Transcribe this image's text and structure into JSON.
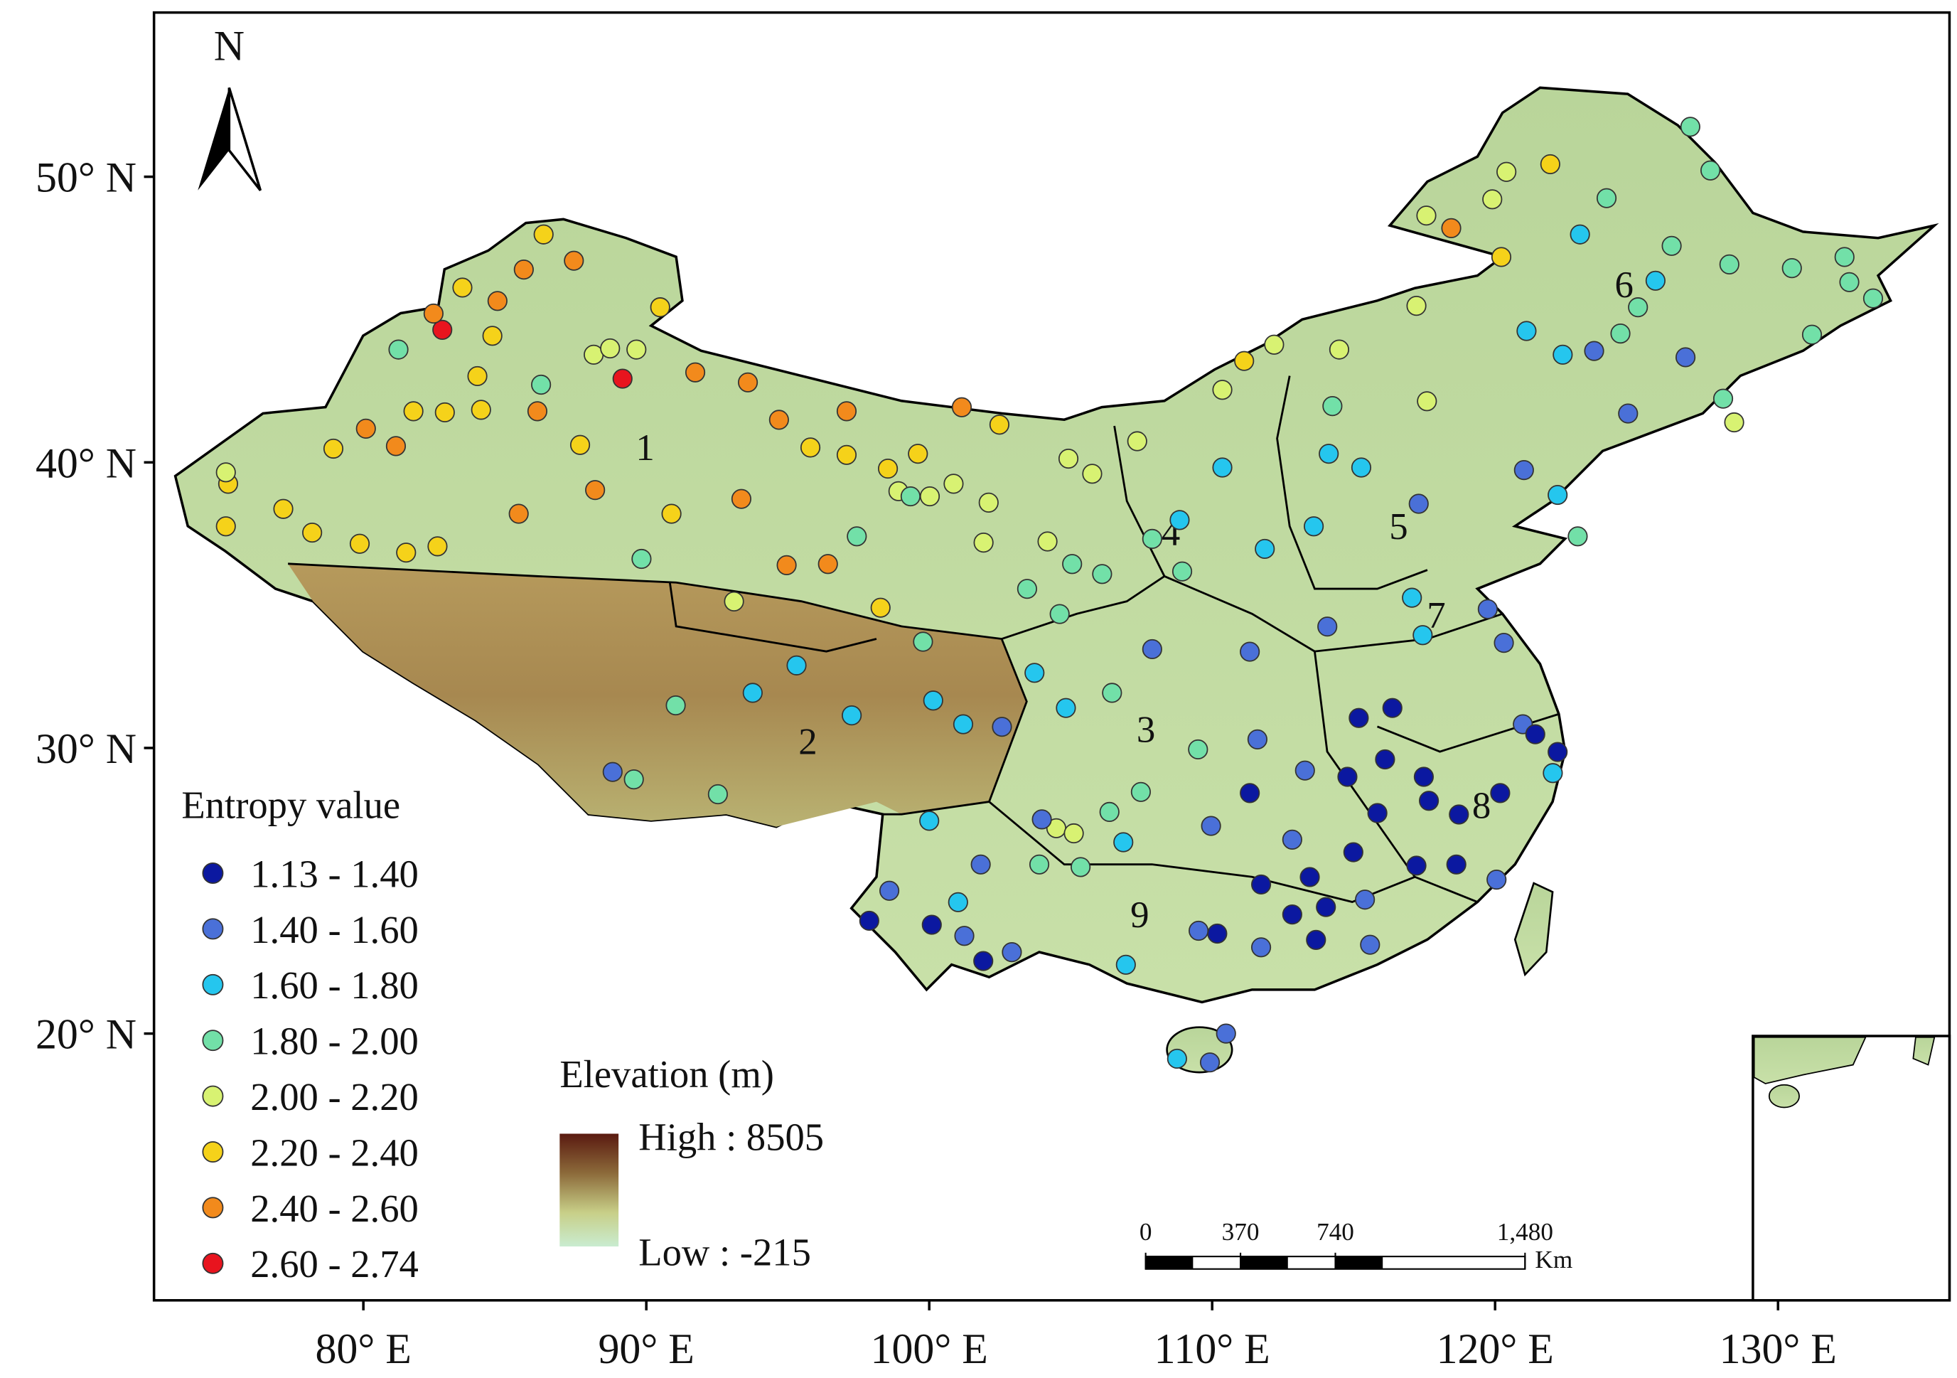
{
  "map": {
    "north_label": "N",
    "xlim": [
      72.6,
      136.06
    ],
    "ylim": [
      10.66,
      55.75
    ],
    "xticks": [
      {
        "value": 80,
        "label": "80° E"
      },
      {
        "value": 90,
        "label": "90° E"
      },
      {
        "value": 100,
        "label": "100° E"
      },
      {
        "value": 110,
        "label": "110° E"
      },
      {
        "value": 120,
        "label": "120° E"
      },
      {
        "value": 130,
        "label": "130° E"
      }
    ],
    "yticks": [
      {
        "value": 20,
        "label": "20° N"
      },
      {
        "value": 30,
        "label": "30° N"
      },
      {
        "value": 40,
        "label": "40° N"
      },
      {
        "value": 50,
        "label": "50° N"
      }
    ],
    "legend": {
      "title": "Entropy value",
      "classes": [
        {
          "label": "1.13 - 1.40",
          "color": "#0b18a0"
        },
        {
          "label": "1.40 - 1.60",
          "color": "#4a70d8"
        },
        {
          "label": "1.60 - 1.80",
          "color": "#25c6ee"
        },
        {
          "label": "1.80 - 2.00",
          "color": "#72e0a8"
        },
        {
          "label": "2.00 - 2.20",
          "color": "#d8f272"
        },
        {
          "label": "2.20 - 2.40",
          "color": "#f5d21a"
        },
        {
          "label": "2.40 - 2.60",
          "color": "#f28a1c"
        },
        {
          "label": "2.60 - 2.74",
          "color": "#e8141e"
        }
      ]
    },
    "elevation": {
      "title": "Elevation (m)",
      "high": "High : 8505",
      "low": "Low : -215"
    },
    "scale_bar": {
      "unit": "Km",
      "ticks": [
        0,
        370,
        740,
        {
          "value": 1480,
          "label": "1,480"
        }
      ]
    },
    "regions": [
      {
        "label": "1",
        "lon": 89.96,
        "lat": 40.52
      },
      {
        "label": "2",
        "lon": 95.71,
        "lat": 30.22
      },
      {
        "label": "3",
        "lon": 107.66,
        "lat": 30.65
      },
      {
        "label": "4",
        "lon": 108.54,
        "lat": 37.54
      },
      {
        "label": "5",
        "lon": 116.59,
        "lat": 37.76
      },
      {
        "label": "6",
        "lon": 124.56,
        "lat": 46.22
      },
      {
        "label": "7",
        "lon": 117.92,
        "lat": 34.64
      },
      {
        "label": "8",
        "lon": 119.52,
        "lat": 27.98
      },
      {
        "label": "9",
        "lon": 107.44,
        "lat": 24.16
      }
    ],
    "stations": [
      [
        82.79,
        44.64,
        7
      ],
      [
        89.16,
        42.93,
        7
      ],
      [
        85.67,
        46.75,
        6
      ],
      [
        87.44,
        47.06,
        6
      ],
      [
        84.74,
        45.65,
        6
      ],
      [
        91.73,
        43.15,
        6
      ],
      [
        93.59,
        42.8,
        6
      ],
      [
        94.69,
        41.49,
        6
      ],
      [
        97.08,
        41.79,
        6
      ],
      [
        101.15,
        41.93,
        6
      ],
      [
        80.09,
        41.18,
        6
      ],
      [
        81.15,
        40.57,
        6
      ],
      [
        86.15,
        41.79,
        6
      ],
      [
        85.49,
        38.2,
        6
      ],
      [
        88.19,
        39.03,
        6
      ],
      [
        93.36,
        38.72,
        6
      ],
      [
        94.96,
        36.4,
        6
      ],
      [
        96.42,
        36.44,
        6
      ],
      [
        118.45,
        48.2,
        6
      ],
      [
        82.48,
        45.21,
        6
      ],
      [
        86.37,
        47.98,
        5
      ],
      [
        90.49,
        45.43,
        5
      ],
      [
        83.5,
        46.12,
        5
      ],
      [
        84.56,
        44.43,
        5
      ],
      [
        84.03,
        43.02,
        5
      ],
      [
        81.77,
        41.79,
        5
      ],
      [
        82.88,
        41.75,
        5
      ],
      [
        84.16,
        41.84,
        5
      ],
      [
        78.94,
        40.48,
        5
      ],
      [
        75.22,
        39.25,
        5
      ],
      [
        77.17,
        38.37,
        5
      ],
      [
        78.19,
        37.54,
        5
      ],
      [
        79.87,
        37.15,
        5
      ],
      [
        81.51,
        36.84,
        5
      ],
      [
        82.62,
        37.06,
        5
      ],
      [
        75.14,
        37.76,
        5
      ],
      [
        87.66,
        40.61,
        5
      ],
      [
        90.89,
        38.2,
        5
      ],
      [
        95.8,
        40.52,
        5
      ],
      [
        97.08,
        40.26,
        5
      ],
      [
        98.54,
        39.78,
        5
      ],
      [
        99.6,
        40.3,
        5
      ],
      [
        98.28,
        34.91,
        5
      ],
      [
        120.22,
        47.19,
        5
      ],
      [
        121.95,
        50.44,
        5
      ],
      [
        102.48,
        41.32,
        5
      ],
      [
        111.13,
        43.55,
        5
      ],
      [
        75.14,
        39.65,
        4
      ],
      [
        93.1,
        35.13,
        4
      ],
      [
        117.57,
        48.64,
        4
      ],
      [
        120.4,
        50.17,
        4
      ],
      [
        119.9,
        49.21,
        4
      ],
      [
        117.22,
        45.48,
        4
      ],
      [
        110.36,
        42.54,
        4
      ],
      [
        107.35,
        40.74,
        4
      ],
      [
        104.92,
        40.13,
        4
      ],
      [
        105.76,
        39.6,
        4
      ],
      [
        100.02,
        38.81,
        4
      ],
      [
        98.91,
        38.99,
        4
      ],
      [
        100.86,
        39.25,
        4
      ],
      [
        102.1,
        38.59,
        4
      ],
      [
        101.92,
        37.19,
        4
      ],
      [
        104.18,
        37.23,
        4
      ],
      [
        104.49,
        27.19,
        4
      ],
      [
        105.11,
        27.01,
        4
      ],
      [
        128.45,
        41.4,
        4
      ],
      [
        112.19,
        44.12,
        4
      ],
      [
        114.49,
        43.95,
        4
      ],
      [
        88.14,
        43.77,
        4
      ],
      [
        88.72,
        43.99,
        4
      ],
      [
        89.65,
        43.95,
        4
      ],
      [
        117.59,
        42.14,
        4
      ],
      [
        126.9,
        51.75,
        3
      ],
      [
        127.61,
        50.22,
        3
      ],
      [
        123.94,
        49.25,
        3
      ],
      [
        126.24,
        47.58,
        3
      ],
      [
        128.28,
        46.93,
        3
      ],
      [
        130.49,
        46.8,
        3
      ],
      [
        132.35,
        47.19,
        3
      ],
      [
        132.52,
        46.31,
        3
      ],
      [
        133.36,
        45.74,
        3
      ],
      [
        131.2,
        44.47,
        3
      ],
      [
        125.05,
        45.43,
        3
      ],
      [
        124.43,
        44.51,
        3
      ],
      [
        128.06,
        42.23,
        3
      ],
      [
        81.24,
        43.95,
        3
      ],
      [
        86.28,
        42.72,
        3
      ],
      [
        89.83,
        36.62,
        3
      ],
      [
        97.44,
        37.41,
        3
      ],
      [
        99.34,
        38.81,
        3
      ],
      [
        107.88,
        37.32,
        3
      ],
      [
        106.11,
        36.09,
        3
      ],
      [
        105.05,
        36.44,
        3
      ],
      [
        104.61,
        34.69,
        3
      ],
      [
        103.46,
        35.57,
        3
      ],
      [
        106.46,
        31.93,
        3
      ],
      [
        107.48,
        28.46,
        3
      ],
      [
        106.37,
        27.76,
        3
      ],
      [
        105.35,
        25.83,
        3
      ],
      [
        103.89,
        25.92,
        3
      ],
      [
        92.53,
        28.38,
        3
      ],
      [
        89.56,
        28.9,
        3
      ],
      [
        91.04,
        31.49,
        3
      ],
      [
        122.92,
        37.41,
        3
      ],
      [
        109.5,
        29.95,
        3
      ],
      [
        99.78,
        33.72,
        3
      ],
      [
        108.94,
        36.18,
        3
      ],
      [
        114.25,
        41.97,
        3
      ],
      [
        123.0,
        47.98,
        2
      ],
      [
        125.67,
        46.36,
        2
      ],
      [
        121.11,
        44.6,
        2
      ],
      [
        122.39,
        43.77,
        2
      ],
      [
        122.21,
        38.86,
        2
      ],
      [
        110.36,
        39.82,
        2
      ],
      [
        114.12,
        40.3,
        2
      ],
      [
        108.85,
        37.98,
        2
      ],
      [
        111.86,
        36.97,
        2
      ],
      [
        95.31,
        32.89,
        2
      ],
      [
        93.76,
        31.93,
        2
      ],
      [
        97.26,
        31.14,
        2
      ],
      [
        100.14,
        31.66,
        2
      ],
      [
        101.2,
        30.83,
        2
      ],
      [
        103.72,
        32.63,
        2
      ],
      [
        104.83,
        31.4,
        2
      ],
      [
        100.0,
        27.45,
        2
      ],
      [
        106.86,
        26.7,
        2
      ],
      [
        108.76,
        19.12,
        2
      ],
      [
        106.95,
        22.41,
        2
      ],
      [
        122.04,
        29.12,
        2
      ],
      [
        117.06,
        35.26,
        2
      ],
      [
        117.44,
        33.95,
        2
      ],
      [
        113.59,
        37.76,
        2
      ],
      [
        115.27,
        39.82,
        2
      ],
      [
        101.02,
        24.6,
        2
      ],
      [
        88.81,
        29.16,
        1
      ],
      [
        98.59,
        25.0,
        1
      ],
      [
        101.82,
        25.92,
        1
      ],
      [
        101.24,
        23.42,
        1
      ],
      [
        102.92,
        22.85,
        1
      ],
      [
        103.98,
        27.5,
        1
      ],
      [
        102.57,
        30.74,
        1
      ],
      [
        109.96,
        27.27,
        1
      ],
      [
        111.6,
        30.3,
        1
      ],
      [
        113.28,
        29.21,
        1
      ],
      [
        109.52,
        23.6,
        1
      ],
      [
        111.73,
        23.02,
        1
      ],
      [
        112.83,
        26.79,
        1
      ],
      [
        115.58,
        23.11,
        1
      ],
      [
        120.05,
        25.39,
        1
      ],
      [
        120.31,
        33.68,
        1
      ],
      [
        119.74,
        34.86,
        1
      ],
      [
        120.98,
        30.83,
        1
      ],
      [
        123.5,
        43.9,
        1
      ],
      [
        124.7,
        41.71,
        1
      ],
      [
        126.73,
        43.68,
        1
      ],
      [
        121.02,
        39.73,
        1
      ],
      [
        111.33,
        33.37,
        1
      ],
      [
        107.88,
        33.46,
        1
      ],
      [
        114.07,
        34.25,
        1
      ],
      [
        117.3,
        38.55,
        1
      ],
      [
        110.49,
        20.0,
        1
      ],
      [
        109.92,
        18.99,
        1
      ],
      [
        115.4,
        24.69,
        1
      ],
      [
        97.88,
        23.95,
        0
      ],
      [
        100.09,
        23.81,
        0
      ],
      [
        101.91,
        22.54,
        0
      ],
      [
        111.33,
        28.42,
        0
      ],
      [
        115.18,
        31.05,
        0
      ],
      [
        116.11,
        29.6,
        0
      ],
      [
        117.48,
        28.99,
        0
      ],
      [
        115.84,
        27.72,
        0
      ],
      [
        118.72,
        27.67,
        0
      ],
      [
        118.63,
        25.92,
        0
      ],
      [
        114.99,
        26.35,
        0
      ],
      [
        113.45,
        25.48,
        0
      ],
      [
        114.02,
        24.43,
        0
      ],
      [
        113.67,
        23.28,
        0
      ],
      [
        112.83,
        24.17,
        0
      ],
      [
        110.18,
        23.5,
        0
      ],
      [
        111.73,
        25.22,
        0
      ],
      [
        121.42,
        30.48,
        0
      ],
      [
        122.21,
        29.86,
        0
      ],
      [
        116.37,
        31.4,
        0
      ],
      [
        120.18,
        28.42,
        0
      ],
      [
        114.78,
        28.99,
        0
      ],
      [
        117.22,
        25.88,
        0
      ],
      [
        117.66,
        28.15,
        0
      ]
    ]
  }
}
